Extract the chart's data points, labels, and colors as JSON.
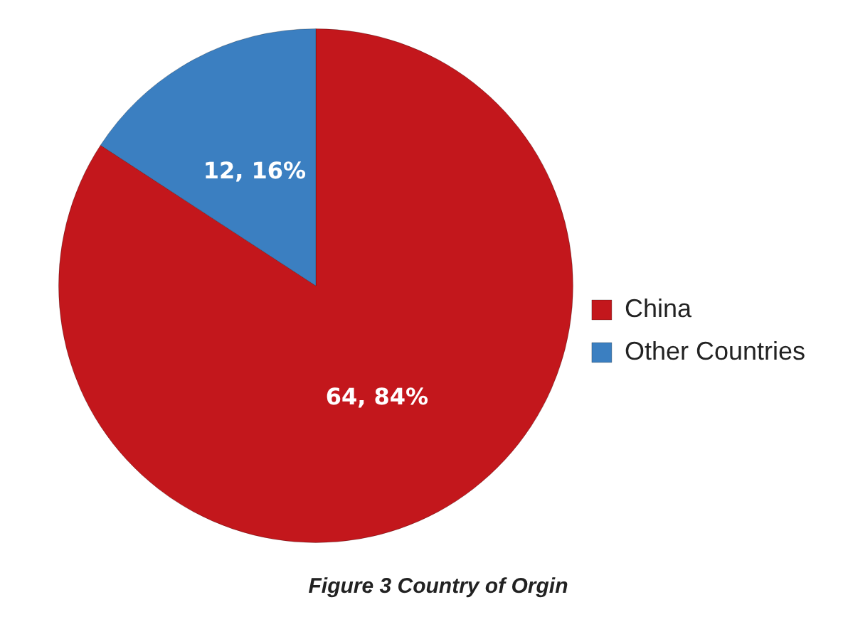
{
  "chart_data": {
    "type": "pie",
    "title": "Figure 3 Country of Orgin",
    "categories": [
      "China",
      "Other Countries"
    ],
    "values": [
      64,
      12
    ],
    "colors": [
      "#c3171c",
      "#3b7fc1"
    ],
    "value_labels": [
      "64, 84%",
      "12, 16%"
    ],
    "legend": "right"
  }
}
